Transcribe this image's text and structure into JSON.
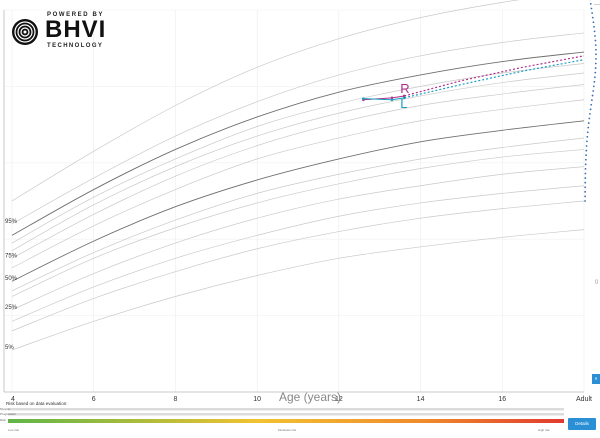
{
  "logo": {
    "powered_by": "POWERED BY",
    "brand": "BHVI",
    "technology": "TECHNOLOGY"
  },
  "chart_data": {
    "type": "line",
    "xlabel": "Age (years)",
    "ylabel": "",
    "x_tick_labels": [
      "4",
      "6",
      "8",
      "10",
      "12",
      "14",
      "16",
      "Adult"
    ],
    "x_ticks": [
      4,
      6,
      8,
      10,
      12,
      14,
      16,
      18
    ],
    "xlim": [
      4,
      18
    ],
    "ylim": [
      0,
      100
    ],
    "grid": true,
    "percentile_labels": [
      {
        "label": "95%",
        "percentile": 95
      },
      {
        "label": "75%",
        "percentile": 75
      },
      {
        "label": "50%",
        "percentile": 50
      },
      {
        "label": "25%",
        "percentile": 25
      },
      {
        "label": "5%",
        "percentile": 5
      }
    ],
    "percentile_curves": [
      {
        "percentile": 98,
        "values": [
          50,
          63,
          75,
          85,
          92.5,
          98,
          102,
          105
        ]
      },
      {
        "percentile": 95,
        "values": [
          44,
          56,
          67,
          76,
          83,
          88,
          91.5,
          94
        ]
      },
      {
        "percentile": 90,
        "values": [
          41,
          53,
          63.5,
          72,
          78.5,
          83,
          86.5,
          89
        ]
      },
      {
        "percentile": 85,
        "values": [
          39,
          51,
          61,
          69.5,
          75.5,
          80,
          83.5,
          86
        ]
      },
      {
        "percentile": 80,
        "values": [
          37,
          49,
          59,
          67,
          73,
          77.5,
          81,
          83.5
        ]
      },
      {
        "percentile": 75,
        "values": [
          35,
          46.5,
          56.5,
          64.5,
          70.5,
          75,
          78,
          80.5
        ]
      },
      {
        "percentile": 65,
        "values": [
          32.5,
          43.5,
          53,
          61,
          66.5,
          71,
          74,
          76.5
        ]
      },
      {
        "percentile": 50,
        "values": [
          29,
          39.5,
          48.5,
          55.5,
          61,
          65.5,
          68.5,
          71
        ]
      },
      {
        "percentile": 40,
        "values": [
          26.5,
          36.5,
          45,
          52,
          57,
          61,
          64,
          66.5
        ]
      },
      {
        "percentile": 35,
        "values": [
          25,
          35,
          43,
          49.5,
          54.5,
          58.5,
          61.5,
          63.5
        ]
      },
      {
        "percentile": 25,
        "values": [
          21.5,
          31,
          39,
          45.5,
          50.5,
          54,
          57,
          59
        ]
      },
      {
        "percentile": 15,
        "values": [
          18.5,
          27.5,
          35,
          41,
          46,
          49.5,
          52,
          54
        ]
      },
      {
        "percentile": 10,
        "values": [
          16,
          24.5,
          31.5,
          37.5,
          42,
          45.5,
          48,
          50
        ]
      },
      {
        "percentile": 5,
        "values": [
          11,
          18.5,
          25,
          30.5,
          35,
          38,
          40.5,
          42.5
        ]
      }
    ],
    "series": [
      {
        "name": "R",
        "color": "#b0308a",
        "measured": {
          "x": [
            12.6,
            13.3,
            13.6
          ],
          "y": [
            76.5,
            77,
            77.5
          ]
        },
        "projection": {
          "x": [
            13.6,
            15,
            16.5,
            18
          ],
          "y": [
            77.5,
            81.5,
            85,
            88
          ]
        }
      },
      {
        "name": "L",
        "color": "#1b9ec0",
        "measured": {
          "x": [
            12.6,
            13.3,
            13.6
          ],
          "y": [
            76.8,
            76.5,
            77
          ]
        },
        "projection": {
          "x": [
            13.6,
            15,
            16.5,
            18
          ],
          "y": [
            77,
            80.5,
            84,
            87
          ]
        }
      }
    ]
  },
  "risk": {
    "label": "Risk based on data evaluation:",
    "bar_labels": [
      "Myopia",
      "Progression",
      "Risk"
    ],
    "scale_low": "Low risk",
    "scale_mid": "Moderate risk",
    "scale_high": "High risk",
    "details_label": "Details"
  },
  "right_tab_label": "R"
}
